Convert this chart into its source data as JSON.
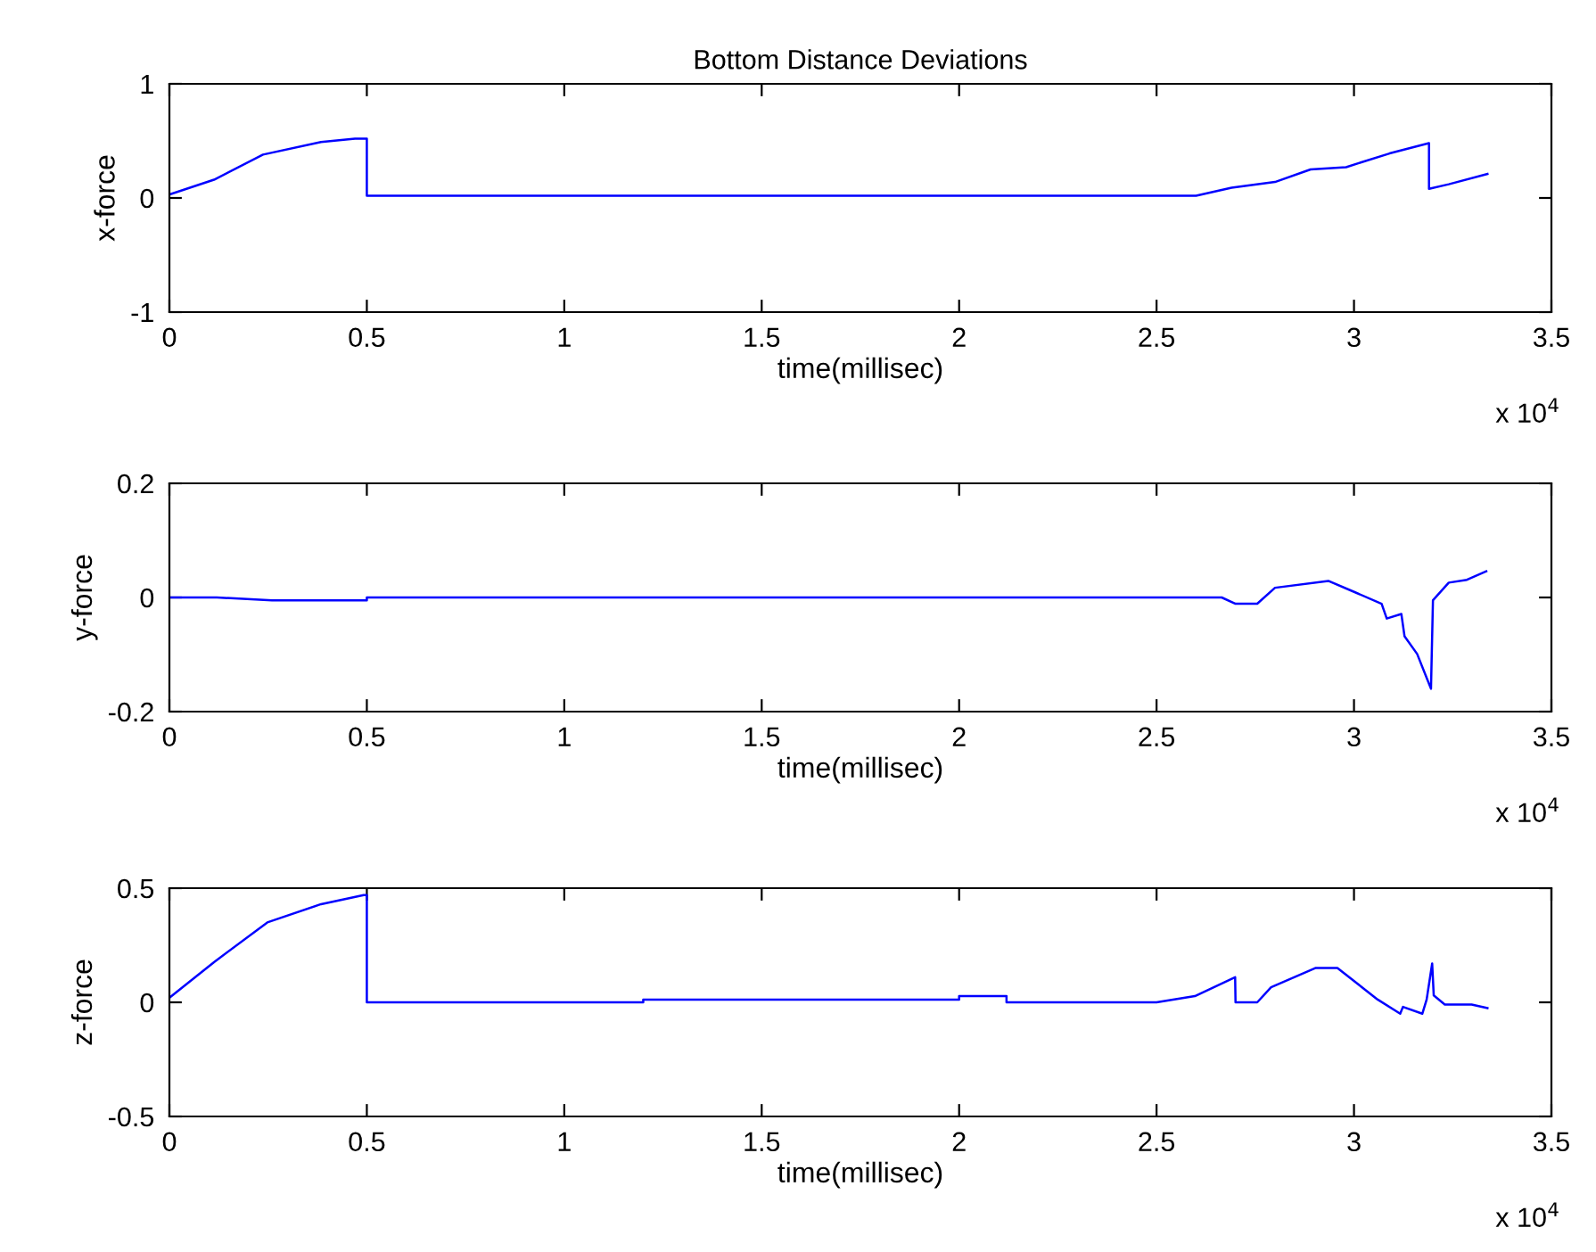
{
  "chart_data": [
    {
      "type": "line",
      "title": "Bottom Distance Deviations",
      "xlabel": "time(millisec)",
      "ylabel": "x-force",
      "annotations": [
        "x 10$^{4}$"
      ],
      "series": [
        {
          "color": "#0000ff",
          "x": [
            0,
            0.113,
            0.237,
            0.384,
            0.47,
            0.5,
            0.5,
            2.6,
            2.69,
            2.8,
            2.89,
            2.98,
            3.09,
            3.19,
            3.19,
            3.24,
            3.338
          ],
          "values": [
            0.03,
            0.16,
            0.38,
            0.49,
            0.52,
            0.52,
            0.02,
            0.02,
            0.09,
            0.14,
            0.25,
            0.27,
            0.39,
            0.48,
            0.08,
            0.12,
            0.21
          ]
        }
      ],
      "xlim": [
        0,
        3.5
      ],
      "xticks": [
        0,
        0.5,
        1,
        1.5,
        2,
        2.5,
        3,
        3.5
      ],
      "ylim": [
        -1,
        1
      ],
      "yticks": [
        -1,
        0,
        1
      ],
      "grid": false,
      "marker": "none",
      "line_style": "solid"
    },
    {
      "type": "line",
      "xlabel": "time(millisec)",
      "ylabel": "y-force",
      "annotations": [
        "x 10$^{4}$"
      ],
      "series": [
        {
          "color": "#0000ff",
          "x": [
            0,
            0.12,
            0.26,
            0.5,
            0.5,
            2.665,
            2.7,
            2.755,
            2.8,
            2.935,
            3.003,
            3.07,
            3.083,
            3.12,
            3.128,
            3.16,
            3.195,
            3.2,
            3.24,
            3.286,
            3.335
          ],
          "values": [
            0,
            0,
            -0.005,
            -0.005,
            0,
            0,
            -0.011,
            -0.011,
            0.017,
            0.029,
            0.009,
            -0.011,
            -0.037,
            -0.029,
            -0.068,
            -0.099,
            -0.16,
            -0.005,
            0.026,
            0.031,
            0.046
          ]
        }
      ],
      "xlim": [
        0,
        3.5
      ],
      "xticks": [
        0,
        0.5,
        1,
        1.5,
        2,
        2.5,
        3,
        3.5
      ],
      "ylim": [
        -0.2,
        0.2
      ],
      "yticks": [
        -0.2,
        0,
        0.2
      ],
      "grid": false,
      "marker": "none",
      "line_style": "solid"
    },
    {
      "type": "line",
      "xlabel": "time(millisec)",
      "ylabel": "z-force",
      "annotations": [
        "x 10$^{4}$"
      ],
      "series": [
        {
          "color": "#0000ff",
          "x": [
            0,
            0.113,
            0.248,
            0.384,
            0.492,
            0.5,
            0.5,
            1.2,
            1.2,
            2.0,
            2.0,
            2.12,
            2.12,
            2.5,
            2.597,
            2.699,
            2.7,
            2.755,
            2.79,
            2.902,
            2.958,
            3.06,
            3.117,
            3.124,
            3.173,
            3.184,
            3.198,
            3.202,
            3.23,
            3.298,
            3.338
          ],
          "values": [
            0.02,
            0.176,
            0.35,
            0.43,
            0.47,
            0.47,
            0,
            0,
            0.012,
            0.012,
            0.027,
            0.027,
            0,
            0,
            0.027,
            0.11,
            0,
            0,
            0.066,
            0.15,
            0.15,
            0.012,
            -0.05,
            -0.02,
            -0.05,
            0.012,
            0.17,
            0.03,
            -0.01,
            -0.01,
            -0.025
          ]
        }
      ],
      "xlim": [
        0,
        3.5
      ],
      "xticks": [
        0,
        0.5,
        1,
        1.5,
        2,
        2.5,
        3,
        3.5
      ],
      "ylim": [
        -0.5,
        0.5
      ],
      "yticks": [
        -0.5,
        0,
        0.5
      ],
      "grid": false,
      "marker": "none",
      "line_style": "solid"
    }
  ]
}
